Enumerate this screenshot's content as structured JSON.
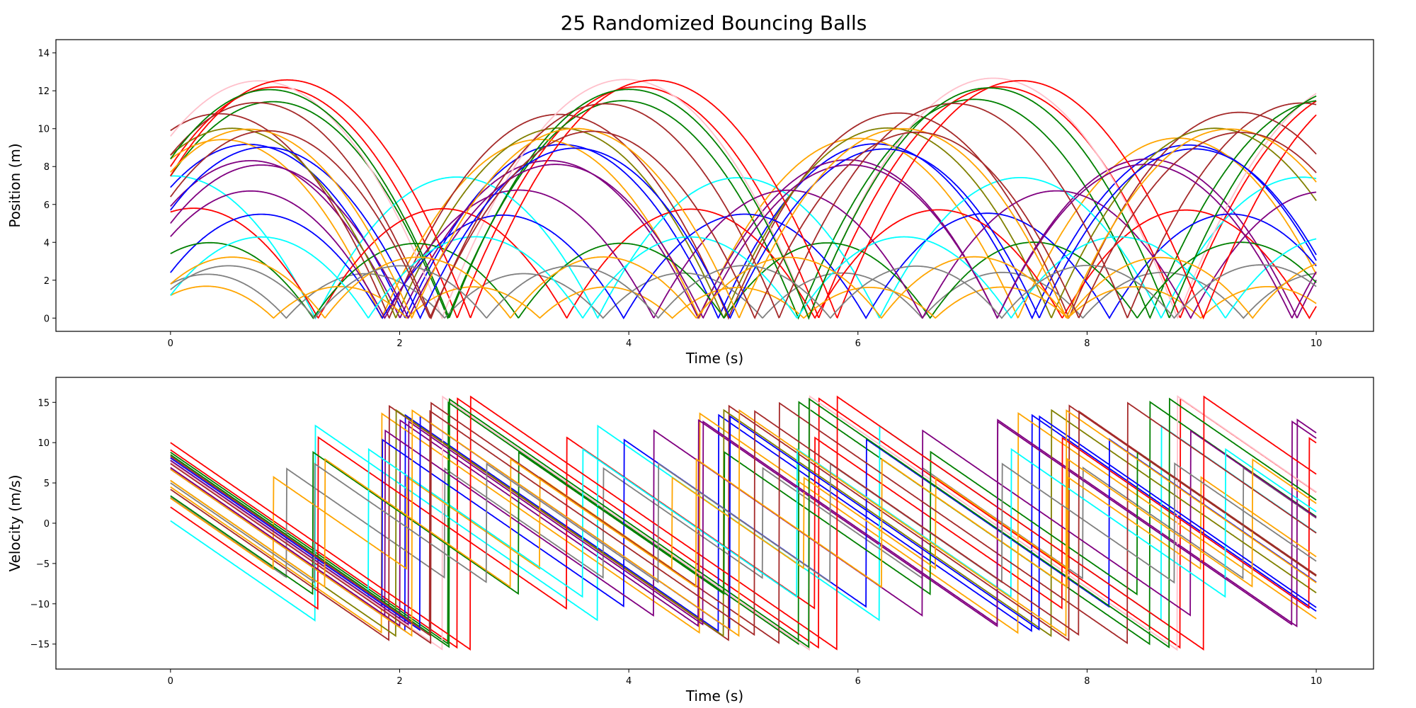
{
  "title": "25 Randomized Bouncing Balls",
  "colors": [
    "red",
    "blue",
    "green",
    "orange",
    "purple",
    "cyan",
    "brown",
    "pink",
    "gray",
    "olive"
  ],
  "chart_data": [
    {
      "type": "line",
      "panel": "position",
      "title": "25 Randomized Bouncing Balls",
      "xlabel": "Time (s)",
      "ylabel": "Position (m)",
      "xlim": [
        -1.0,
        10.5
      ],
      "ylim": [
        -0.7,
        14.7
      ],
      "xticks": [
        0,
        2,
        4,
        6,
        8,
        10
      ],
      "yticks": [
        0,
        2,
        4,
        6,
        8,
        10,
        12,
        14
      ],
      "grid": false,
      "gravity": 9.81,
      "t_range": [
        0,
        10
      ],
      "series": [
        {
          "color": "red",
          "h0": 8.0,
          "v0": 9.1
        },
        {
          "color": "blue",
          "h0": 6.9,
          "v0": 6.7
        },
        {
          "color": "green",
          "h0": 7.5,
          "v0": 8.8
        },
        {
          "color": "orange",
          "h0": 8.4,
          "v0": 4.5
        },
        {
          "color": "purple",
          "h0": 5.9,
          "v0": 6.9
        },
        {
          "color": "cyan",
          "h0": 7.5,
          "v0": 0.3
        },
        {
          "color": "brown",
          "h0": 9.9,
          "v0": 4.2
        },
        {
          "color": "pink",
          "h0": 9.6,
          "v0": 7.6
        },
        {
          "color": "gray",
          "h0": 1.8,
          "v0": 3.2
        },
        {
          "color": "olive",
          "h0": 8.6,
          "v0": 5.3
        },
        {
          "color": "red",
          "h0": 5.6,
          "v0": 2.0
        },
        {
          "color": "blue",
          "h0": 2.4,
          "v0": 7.8
        },
        {
          "color": "green",
          "h0": 3.4,
          "v0": 3.4
        },
        {
          "color": "orange",
          "h0": 1.2,
          "v0": 3.1
        },
        {
          "color": "purple",
          "h0": 4.3,
          "v0": 6.9
        },
        {
          "color": "cyan",
          "h0": 1.2,
          "v0": 7.8
        },
        {
          "color": "brown",
          "h0": 8.6,
          "v0": 7.4
        },
        {
          "color": "red",
          "h0": 7.5,
          "v0": 10.0
        },
        {
          "color": "green",
          "h0": 8.4,
          "v0": 8.5
        },
        {
          "color": "blue",
          "h0": 5.7,
          "v0": 8.1
        },
        {
          "color": "purple",
          "h0": 5.0,
          "v0": 7.8
        },
        {
          "color": "orange",
          "h0": 1.8,
          "v0": 5.3
        },
        {
          "color": "orange",
          "h0": 7.7,
          "v0": 6.7
        },
        {
          "color": "gray",
          "h0": 1.5,
          "v0": 5.0
        },
        {
          "color": "brown",
          "h0": 6.4,
          "v0": 8.3
        }
      ]
    },
    {
      "type": "line",
      "panel": "velocity",
      "xlabel": "Time (s)",
      "ylabel": "Velocity (m/s)",
      "xlim": [
        -1.0,
        10.5
      ],
      "ylim": [
        -18.1,
        18.1
      ],
      "xticks": [
        0,
        2,
        4,
        6,
        8,
        10
      ],
      "yticks": [
        -15,
        -10,
        -5,
        0,
        5,
        10,
        15
      ],
      "grid": false,
      "derived_from": "position",
      "line_style": "dash-dot at bounce discontinuities"
    }
  ]
}
